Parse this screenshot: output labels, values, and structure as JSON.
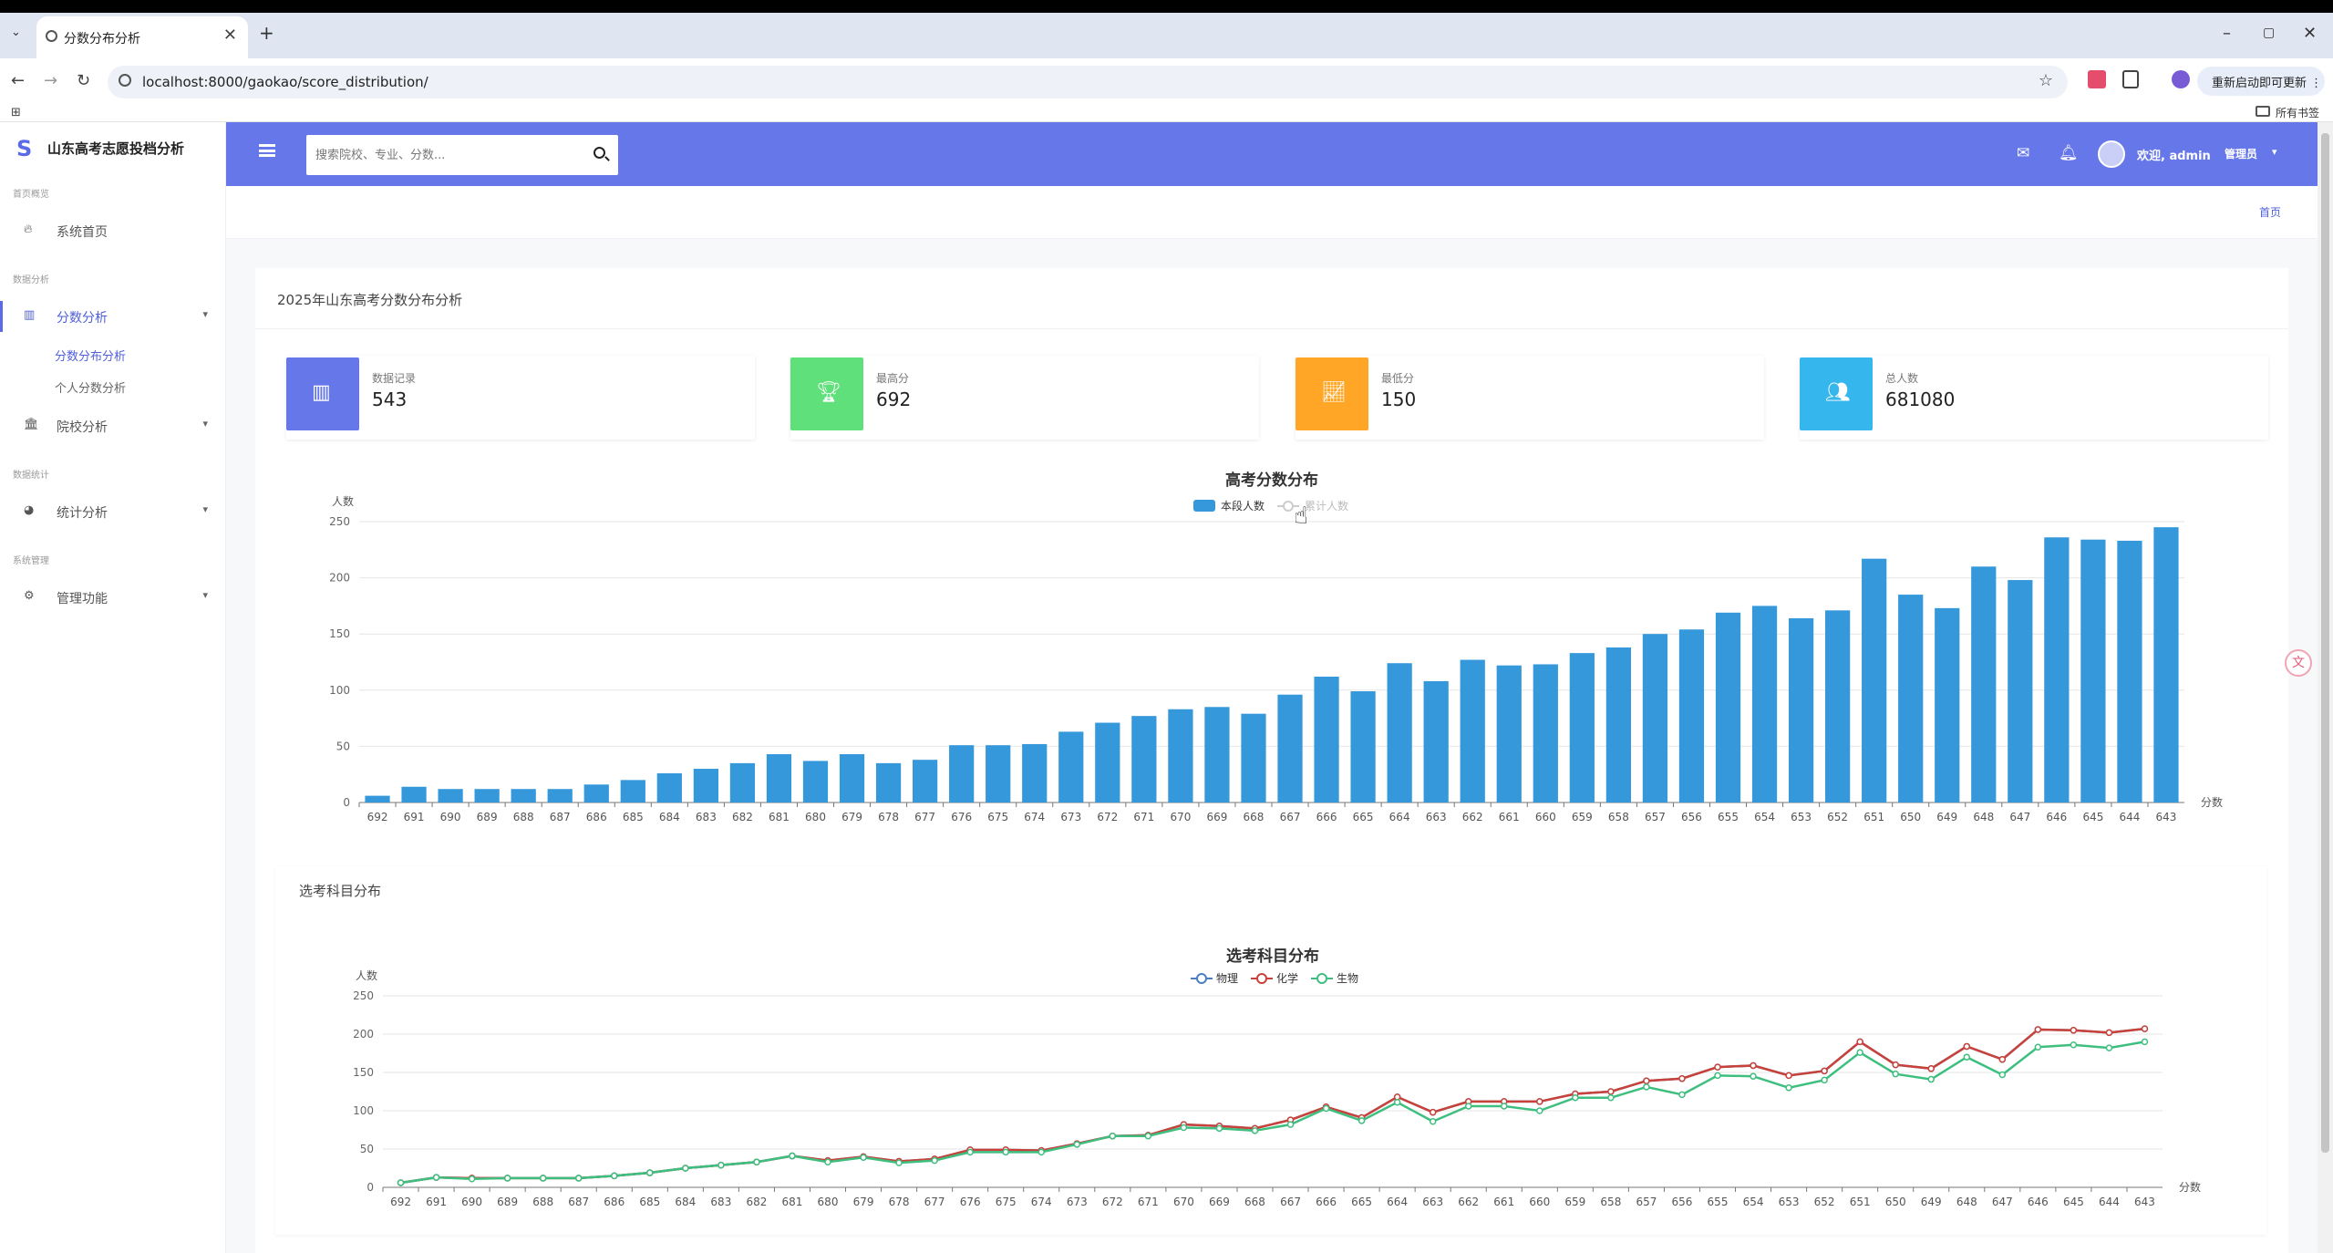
{
  "browser": {
    "tab_title": "分数分布分析",
    "new_tab": "+",
    "url": "localhost:8000/gaokao/score_distribution/",
    "update_button": "重新启动即可更新 ⋮",
    "bookmarks_label": "所有书签",
    "window_min": "–",
    "window_max": "▢",
    "window_close": "✕"
  },
  "sidebar": {
    "brand": "山东高考志愿投档分析",
    "sections": [
      {
        "label": "首页概览"
      },
      {
        "label": "数据分析"
      },
      {
        "label": "数据统计"
      },
      {
        "label": "系统管理"
      }
    ],
    "items": [
      {
        "label": "系统首页",
        "icon": "fire-icon"
      },
      {
        "label": "分数分析",
        "icon": "chart-icon"
      },
      {
        "label": "院校分析",
        "icon": "bank-icon"
      },
      {
        "label": "统计分析",
        "icon": "pie-icon"
      },
      {
        "label": "管理功能",
        "icon": "gears-icon"
      }
    ],
    "sub_items": [
      {
        "label": "分数分布分析"
      },
      {
        "label": "个人分数分析"
      }
    ]
  },
  "header": {
    "search_placeholder": "搜索院校、专业、分数...",
    "welcome": "欢迎, admin",
    "role": "管理员"
  },
  "breadcrumb": "首页",
  "page_title": "2025年山东高考分数分布分析",
  "stats": [
    {
      "label": "数据记录",
      "value": "543",
      "color": "#6677ea",
      "icon": "bar-chart-icon"
    },
    {
      "label": "最高分",
      "value": "692",
      "color": "#5fe07a",
      "icon": "trophy-icon"
    },
    {
      "label": "最低分",
      "value": "150",
      "color": "#ffa627",
      "icon": "line-chart-icon"
    },
    {
      "label": "总人数",
      "value": "681080",
      "color": "#35b6ec",
      "icon": "users-icon"
    }
  ],
  "subject_card_title": "选考科目分布",
  "chart_data": [
    {
      "type": "bar",
      "title": "高考分数分布",
      "ylabel": "人数",
      "xlabel": "分数",
      "ylim": [
        0,
        250
      ],
      "yticks": [
        0,
        50,
        100,
        150,
        200,
        250
      ],
      "legend": [
        "本段人数",
        "累计人数"
      ],
      "legend_position": "top-center",
      "categories": [
        "692",
        "691",
        "690",
        "689",
        "688",
        "687",
        "686",
        "685",
        "684",
        "683",
        "682",
        "681",
        "680",
        "679",
        "678",
        "677",
        "676",
        "675",
        "674",
        "673",
        "672",
        "671",
        "670",
        "669",
        "668",
        "667",
        "666",
        "665",
        "664",
        "663",
        "662",
        "661",
        "660",
        "659",
        "658",
        "657",
        "656",
        "655",
        "654",
        "653",
        "652",
        "651",
        "650",
        "649",
        "648",
        "647",
        "646",
        "645",
        "644",
        "643"
      ],
      "series": [
        {
          "name": "本段人数",
          "color": "#3498db",
          "values": [
            6,
            14,
            12,
            12,
            12,
            12,
            16,
            20,
            26,
            30,
            35,
            43,
            37,
            43,
            35,
            38,
            51,
            51,
            52,
            63,
            71,
            77,
            83,
            85,
            79,
            96,
            112,
            99,
            124,
            108,
            127,
            122,
            123,
            133,
            138,
            150,
            154,
            169,
            175,
            164,
            171,
            217,
            185,
            173,
            210,
            198,
            236,
            234,
            233,
            245
          ]
        }
      ]
    },
    {
      "type": "line",
      "title": "选考科目分布",
      "ylabel": "人数",
      "xlabel": "分数",
      "ylim": [
        0,
        250
      ],
      "yticks": [
        0,
        50,
        100,
        150,
        200,
        250
      ],
      "legend_position": "top-center",
      "categories": [
        "692",
        "691",
        "690",
        "689",
        "688",
        "687",
        "686",
        "685",
        "684",
        "683",
        "682",
        "681",
        "680",
        "679",
        "678",
        "677",
        "676",
        "675",
        "674",
        "673",
        "672",
        "671",
        "670",
        "669",
        "668",
        "667",
        "666",
        "665",
        "664",
        "663",
        "662",
        "661",
        "660",
        "659",
        "658",
        "657",
        "656",
        "655",
        "654",
        "653",
        "652",
        "651",
        "650",
        "649",
        "648",
        "647",
        "646",
        "645",
        "644",
        "643"
      ],
      "series": [
        {
          "name": "物理",
          "color": "#4a7fc1",
          "values": [
            6,
            13,
            12,
            12,
            12,
            12,
            15,
            19,
            25,
            29,
            33,
            41,
            35,
            40,
            34,
            37,
            49,
            49,
            48,
            57,
            67,
            68,
            82,
            80,
            77,
            88,
            105,
            91,
            118,
            98,
            112,
            112,
            112,
            122,
            125,
            139,
            142,
            157,
            159,
            146,
            152,
            190,
            160,
            155,
            184,
            167,
            206,
            205,
            202,
            207
          ]
        },
        {
          "name": "化学",
          "color": "#c9423a",
          "values": [
            6,
            13,
            12,
            12,
            12,
            12,
            15,
            19,
            25,
            29,
            33,
            41,
            35,
            40,
            34,
            37,
            49,
            49,
            48,
            57,
            67,
            68,
            82,
            80,
            77,
            88,
            105,
            91,
            118,
            98,
            112,
            112,
            112,
            122,
            125,
            139,
            142,
            157,
            159,
            146,
            152,
            190,
            160,
            155,
            184,
            167,
            206,
            205,
            202,
            207
          ]
        },
        {
          "name": "生物",
          "color": "#3fbf7f",
          "values": [
            6,
            13,
            11,
            12,
            12,
            12,
            15,
            19,
            25,
            29,
            33,
            41,
            33,
            39,
            32,
            35,
            46,
            46,
            46,
            56,
            67,
            67,
            78,
            77,
            74,
            82,
            103,
            87,
            111,
            86,
            106,
            106,
            100,
            117,
            117,
            131,
            121,
            146,
            145,
            130,
            140,
            176,
            148,
            141,
            170,
            147,
            183,
            186,
            182,
            190
          ]
        }
      ]
    }
  ]
}
